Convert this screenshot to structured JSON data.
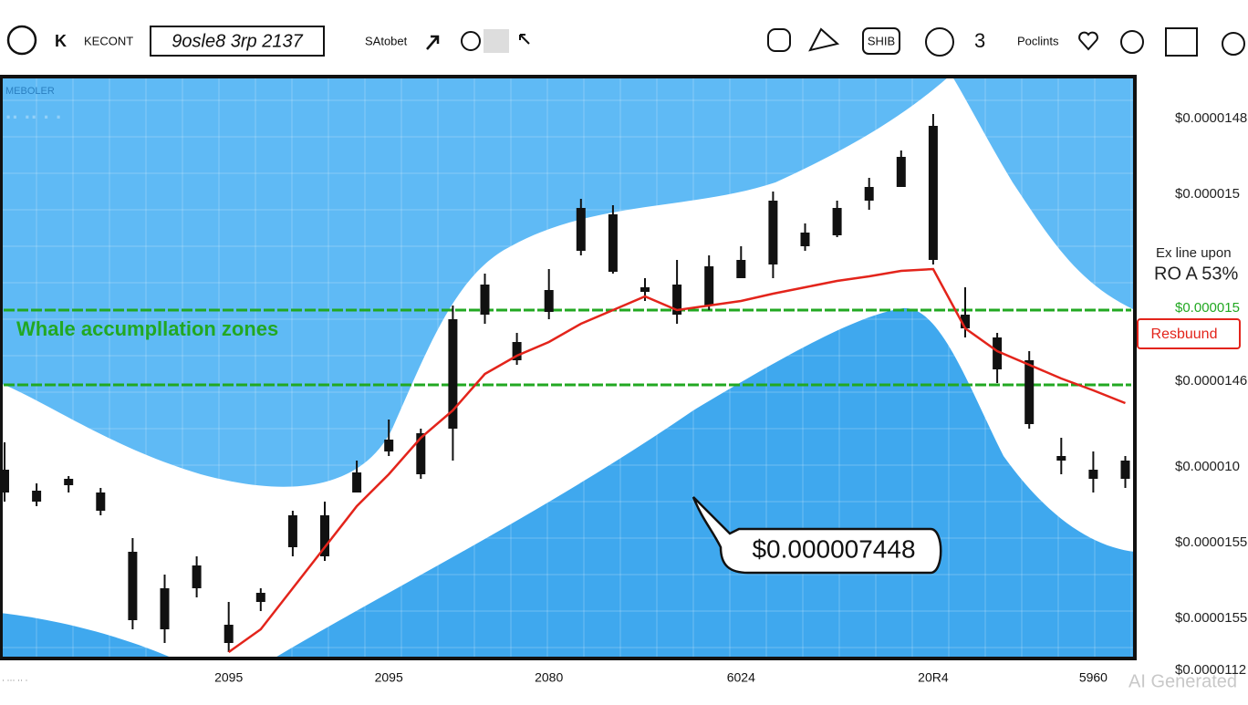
{
  "toolbar": {
    "left": "KECONT",
    "search": "9osle8 3rp 2137",
    "pair": "SAtobet",
    "token": "SHIB",
    "points": "Poclints"
  },
  "chart_data": {
    "type": "candlestick",
    "overlay_title": "MEBOLER",
    "categories": [
      null,
      null,
      null,
      null,
      null,
      null,
      null,
      "2095",
      null,
      null,
      null,
      null,
      "2095",
      null,
      null,
      null,
      null,
      "2080",
      null,
      null,
      null,
      null,
      null,
      "6024",
      null,
      null,
      null,
      null,
      null,
      "20R4",
      null,
      null,
      null,
      null,
      "5960",
      null
    ],
    "open": [
      1.08e-05,
      1.07e-05,
      1.095e-05,
      1.08e-05,
      1.015e-05,
      9.3e-06,
      1e-05,
      9.15e-06,
      9.6e-06,
      1.02e-05,
      1.01e-05,
      1.08e-05,
      1.125e-05,
      1.1e-05,
      1.15e-05,
      1.275e-05,
      1.225e-05,
      1.278e-05,
      1.345e-05,
      1.322e-05,
      1.305e-05,
      1.275e-05,
      1.285e-05,
      1.315e-05,
      1.33e-05,
      1.35e-05,
      1.362e-05,
      1.4e-05,
      1.415e-05,
      1.482e-05,
      1.275e-05,
      1.25e-05,
      1.225e-05,
      1.12e-05,
      1.105e-05,
      1.095e-05
    ],
    "high": [
      1.135e-05,
      1.09e-05,
      1.098e-05,
      1.085e-05,
      1.03e-05,
      9.9e-06,
      1.01e-05,
      9.6e-06,
      9.75e-06,
      1.06e-05,
      1.07e-05,
      1.115e-05,
      1.16e-05,
      1.15e-05,
      1.285e-05,
      1.32e-05,
      1.255e-05,
      1.325e-05,
      1.402e-05,
      1.395e-05,
      1.315e-05,
      1.335e-05,
      1.34e-05,
      1.35e-05,
      1.41e-05,
      1.375e-05,
      1.4e-05,
      1.425e-05,
      1.455e-05,
      1.495e-05,
      1.305e-05,
      1.255e-05,
      1.235e-05,
      1.14e-05,
      1.125e-05,
      1.12e-05
    ],
    "low": [
      1.07e-05,
      1.065e-05,
      1.08e-05,
      1.055e-05,
      9.3e-06,
      9.15e-06,
      9.65e-06,
      9.05e-06,
      9.5e-06,
      1.01e-05,
      1.005e-05,
      1.08e-05,
      1.12e-05,
      1.095e-05,
      1.115e-05,
      1.265e-05,
      1.22e-05,
      1.27e-05,
      1.34e-05,
      1.32e-05,
      1.29e-05,
      1.265e-05,
      1.28e-05,
      1.315e-05,
      1.315e-05,
      1.345e-05,
      1.36e-05,
      1.39e-05,
      1.415e-05,
      1.33e-05,
      1.25e-05,
      1.2e-05,
      1.15e-05,
      1.1e-05,
      1.08e-05,
      1.085e-05
    ],
    "close": [
      1.105e-05,
      1.082e-05,
      1.088e-05,
      1.06e-05,
      9.4e-06,
      9.75e-06,
      9.75e-06,
      9.35e-06,
      9.7e-06,
      1.055e-05,
      1.055e-05,
      1.102e-05,
      1.138e-05,
      1.145e-05,
      1.27e-05,
      1.308e-05,
      1.245e-05,
      1.302e-05,
      1.392e-05,
      1.385e-05,
      1.3e-05,
      1.308e-05,
      1.328e-05,
      1.335e-05,
      1.4e-05,
      1.365e-05,
      1.392e-05,
      1.415e-05,
      1.448e-05,
      1.335e-05,
      1.26e-05,
      1.215e-05,
      1.155e-05,
      1.115e-05,
      1.095e-05,
      1.115e-05
    ],
    "color": "#111111",
    "ylim": [
      9e-06,
      1.535e-05
    ],
    "moving_average": {
      "color": "#e3241b",
      "values": [
        null,
        null,
        null,
        null,
        null,
        null,
        null,
        9.05e-06,
        9.3e-06,
        9.75e-06,
        1.02e-05,
        1.065e-05,
        1.1e-05,
        1.14e-05,
        1.17e-05,
        1.21e-05,
        1.23e-05,
        1.245e-05,
        1.265e-05,
        1.28e-05,
        1.295e-05,
        1.28e-05,
        1.285e-05,
        1.29e-05,
        1.298e-05,
        1.305e-05,
        1.312e-05,
        1.317e-05,
        1.323e-05,
        1.325e-05,
        1.26e-05,
        1.235e-05,
        1.22e-05,
        1.205e-05,
        1.192e-05,
        1.178e-05
      ]
    },
    "zones": {
      "label": "Whale accumpllation zones",
      "color": "#22a822",
      "values": [
        1.28e-05,
        1.198e-05
      ]
    },
    "price_labels": [
      "$0.0000148",
      "$0.000015",
      "$0.000015",
      "$0.0000146",
      "$0.000010",
      "$0.0000155",
      "$0.0000155",
      "$0.0000112"
    ],
    "price_label_colors": [
      "#222222",
      "#222222",
      "#22a822",
      "#222222",
      "#222222",
      "#222222",
      "#222222",
      "#222222"
    ],
    "annotations": {
      "callout": "$0.000007448",
      "rebound": "Resbuund",
      "note_line1": "Ex line upon",
      "note_line2": "RO A 53%"
    },
    "watermark": "AI Generated"
  }
}
